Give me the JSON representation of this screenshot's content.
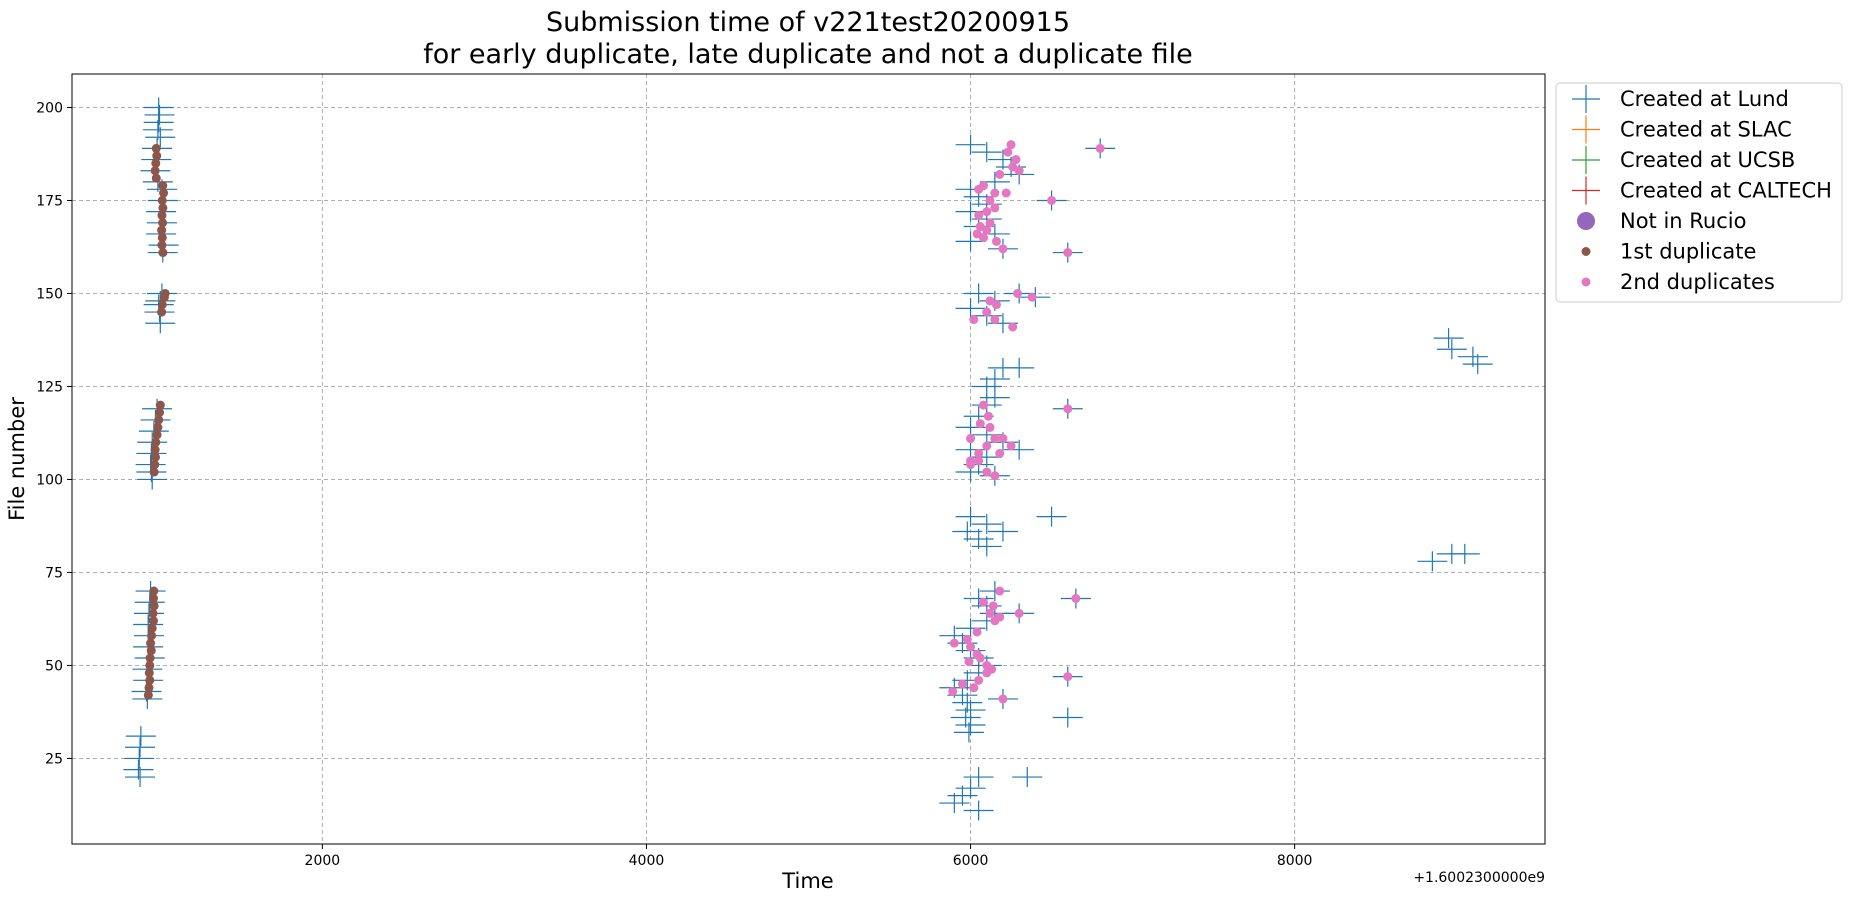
{
  "chart_data": {
    "type": "scatter",
    "title": [
      "Submission time of v221test20200915",
      "for early duplicate, late duplicate and not a duplicate file"
    ],
    "xlabel": "Time",
    "ylabel": "File number",
    "x_offset_text": "+1.6002300000e9",
    "xlim": [
      455,
      9545
    ],
    "ylim": [
      2,
      209
    ],
    "xticks": [
      2000,
      4000,
      6000,
      8000
    ],
    "xtick_labels": [
      "2000",
      "4000",
      "6000",
      "8000"
    ],
    "yticks": [
      25,
      50,
      75,
      100,
      125,
      150,
      175,
      200
    ],
    "ytick_labels": [
      "25",
      "50",
      "75",
      "100",
      "125",
      "150",
      "175",
      "200"
    ],
    "grid": true,
    "legend_position": "outside top-right",
    "series": [
      {
        "name": "Created at Lund",
        "marker": "+",
        "color": "#1f77b4",
        "points": [
          [
            990,
            196
          ],
          [
            990,
            200
          ],
          [
            995,
            198
          ],
          [
            985,
            194
          ],
          [
            1000,
            192
          ],
          [
            980,
            189
          ],
          [
            975,
            186
          ],
          [
            970,
            183
          ],
          [
            985,
            180
          ],
          [
            1010,
            178
          ],
          [
            1015,
            175
          ],
          [
            1005,
            172
          ],
          [
            1010,
            169
          ],
          [
            1005,
            166
          ],
          [
            1020,
            163
          ],
          [
            1015,
            161
          ],
          [
            1010,
            150
          ],
          [
            1000,
            148
          ],
          [
            995,
            145
          ],
          [
            1000,
            142
          ],
          [
            990,
            147
          ],
          [
            980,
            119
          ],
          [
            970,
            116
          ],
          [
            960,
            113
          ],
          [
            950,
            110
          ],
          [
            945,
            107
          ],
          [
            940,
            104
          ],
          [
            945,
            102
          ],
          [
            950,
            100
          ],
          [
            940,
            70
          ],
          [
            935,
            67
          ],
          [
            930,
            64
          ],
          [
            925,
            61
          ],
          [
            930,
            58
          ],
          [
            925,
            55
          ],
          [
            935,
            52
          ],
          [
            920,
            49
          ],
          [
            925,
            46
          ],
          [
            915,
            43
          ],
          [
            920,
            41
          ],
          [
            880,
            31
          ],
          [
            875,
            28
          ],
          [
            870,
            25
          ],
          [
            865,
            22
          ],
          [
            875,
            20
          ],
          [
            6000,
            190
          ],
          [
            6100,
            188
          ],
          [
            6200,
            186
          ],
          [
            6250,
            184
          ],
          [
            6300,
            182
          ],
          [
            6150,
            180
          ],
          [
            6000,
            178
          ],
          [
            6050,
            176
          ],
          [
            6100,
            174
          ],
          [
            6000,
            172
          ],
          [
            6100,
            170
          ],
          [
            6050,
            168
          ],
          [
            6150,
            166
          ],
          [
            6000,
            164
          ],
          [
            6200,
            162
          ],
          [
            6500,
            175
          ],
          [
            6800,
            189
          ],
          [
            6600,
            161
          ],
          [
            6050,
            150
          ],
          [
            6150,
            148
          ],
          [
            6000,
            146
          ],
          [
            6100,
            144
          ],
          [
            6200,
            142
          ],
          [
            6400,
            149
          ],
          [
            6300,
            150
          ],
          [
            6200,
            130
          ],
          [
            6300,
            130
          ],
          [
            6150,
            127
          ],
          [
            6100,
            125
          ],
          [
            6150,
            122
          ],
          [
            6100,
            120
          ],
          [
            6050,
            117
          ],
          [
            6000,
            114
          ],
          [
            6100,
            112
          ],
          [
            6200,
            110
          ],
          [
            6000,
            108
          ],
          [
            6100,
            106
          ],
          [
            6050,
            104
          ],
          [
            6000,
            102
          ],
          [
            6150,
            101
          ],
          [
            6300,
            108
          ],
          [
            6600,
            119
          ],
          [
            6000,
            90
          ],
          [
            6100,
            88
          ],
          [
            5980,
            86
          ],
          [
            6050,
            84
          ],
          [
            6100,
            82
          ],
          [
            6200,
            86
          ],
          [
            6500,
            90
          ],
          [
            8850,
            78
          ],
          [
            8970,
            80
          ],
          [
            9050,
            80
          ],
          [
            8950,
            138
          ],
          [
            8970,
            135
          ],
          [
            9100,
            133
          ],
          [
            9130,
            131
          ],
          [
            6150,
            70
          ],
          [
            6050,
            68
          ],
          [
            6100,
            66
          ],
          [
            6150,
            64
          ],
          [
            6100,
            62
          ],
          [
            6000,
            60
          ],
          [
            5900,
            58
          ],
          [
            5950,
            56
          ],
          [
            6000,
            54
          ],
          [
            6050,
            52
          ],
          [
            6100,
            50
          ],
          [
            6050,
            48
          ],
          [
            5980,
            46
          ],
          [
            5900,
            44
          ],
          [
            5950,
            42
          ],
          [
            5980,
            40
          ],
          [
            6000,
            38
          ],
          [
            5970,
            36
          ],
          [
            6000,
            34
          ],
          [
            5990,
            32
          ],
          [
            6650,
            68
          ],
          [
            6600,
            47
          ],
          [
            6600,
            36
          ],
          [
            6200,
            41
          ],
          [
            6300,
            64
          ],
          [
            6050,
            20
          ],
          [
            6000,
            17
          ],
          [
            5950,
            15
          ],
          [
            5900,
            13
          ],
          [
            6050,
            11
          ],
          [
            6350,
            20
          ]
        ]
      },
      {
        "name": "Created at SLAC",
        "marker": "+",
        "color": "#ff7f0e",
        "points": []
      },
      {
        "name": "Created at UCSB",
        "marker": "+",
        "color": "#2ca02c",
        "points": []
      },
      {
        "name": "Created at CALTECH",
        "marker": "+",
        "color": "#d62728",
        "points": []
      },
      {
        "name": "Not in Rucio",
        "marker": "o-large",
        "color": "#9467bd",
        "points": []
      },
      {
        "name": "1st duplicate",
        "marker": "o",
        "color": "#8c564b",
        "points": [
          [
            975,
            189
          ],
          [
            978,
            187
          ],
          [
            972,
            185
          ],
          [
            968,
            183
          ],
          [
            975,
            181
          ],
          [
            1015,
            179
          ],
          [
            1020,
            177
          ],
          [
            1012,
            175
          ],
          [
            1016,
            173
          ],
          [
            1010,
            171
          ],
          [
            1014,
            169
          ],
          [
            1008,
            167
          ],
          [
            1012,
            165
          ],
          [
            1010,
            163
          ],
          [
            1016,
            161
          ],
          [
            1030,
            150
          ],
          [
            1025,
            149
          ],
          [
            1012,
            147
          ],
          [
            1008,
            145
          ],
          [
            1000,
            120
          ],
          [
            995,
            118
          ],
          [
            990,
            116
          ],
          [
            985,
            114
          ],
          [
            980,
            112
          ],
          [
            972,
            110
          ],
          [
            968,
            108
          ],
          [
            970,
            106
          ],
          [
            965,
            104
          ],
          [
            962,
            102
          ],
          [
            960,
            70
          ],
          [
            958,
            68
          ],
          [
            962,
            66
          ],
          [
            955,
            64
          ],
          [
            958,
            62
          ],
          [
            950,
            60
          ],
          [
            946,
            58
          ],
          [
            940,
            56
          ],
          [
            944,
            54
          ],
          [
            937,
            52
          ],
          [
            935,
            50
          ],
          [
            932,
            48
          ],
          [
            935,
            46
          ],
          [
            930,
            44
          ],
          [
            926,
            42
          ]
        ]
      },
      {
        "name": "2nd duplicates",
        "marker": "o",
        "color": "#e377c2",
        "points": [
          [
            6250,
            190
          ],
          [
            6230,
            188
          ],
          [
            6280,
            186
          ],
          [
            6260,
            184
          ],
          [
            6300,
            183
          ],
          [
            6180,
            182
          ],
          [
            6080,
            179
          ],
          [
            6050,
            178
          ],
          [
            6150,
            177
          ],
          [
            6220,
            177
          ],
          [
            6120,
            175
          ],
          [
            6150,
            173
          ],
          [
            6100,
            172
          ],
          [
            6050,
            171
          ],
          [
            6120,
            169
          ],
          [
            6060,
            168
          ],
          [
            6100,
            167
          ],
          [
            6040,
            166
          ],
          [
            6080,
            165
          ],
          [
            6160,
            164
          ],
          [
            6200,
            162
          ],
          [
            6500,
            175
          ],
          [
            6800,
            189
          ],
          [
            6600,
            161
          ],
          [
            6290,
            150
          ],
          [
            6380,
            149
          ],
          [
            6120,
            148
          ],
          [
            6160,
            147
          ],
          [
            6020,
            143
          ],
          [
            6100,
            145
          ],
          [
            6150,
            143
          ],
          [
            6260,
            141
          ],
          [
            6080,
            120
          ],
          [
            6110,
            117
          ],
          [
            6060,
            115
          ],
          [
            6120,
            114
          ],
          [
            6000,
            111
          ],
          [
            6150,
            111
          ],
          [
            6200,
            111
          ],
          [
            6100,
            109
          ],
          [
            6250,
            109
          ],
          [
            6050,
            107
          ],
          [
            6180,
            107
          ],
          [
            6000,
            105
          ],
          [
            6050,
            105
          ],
          [
            6000,
            104
          ],
          [
            6100,
            102
          ],
          [
            6150,
            101
          ],
          [
            6600,
            119
          ],
          [
            6180,
            70
          ],
          [
            6080,
            67
          ],
          [
            6140,
            66
          ],
          [
            6120,
            64
          ],
          [
            6180,
            63
          ],
          [
            6150,
            62
          ],
          [
            6040,
            59
          ],
          [
            5980,
            57
          ],
          [
            5900,
            56
          ],
          [
            6000,
            55
          ],
          [
            6040,
            53
          ],
          [
            6060,
            52
          ],
          [
            5990,
            51
          ],
          [
            6100,
            50
          ],
          [
            6130,
            49
          ],
          [
            6100,
            48
          ],
          [
            6050,
            46
          ],
          [
            5950,
            45
          ],
          [
            6020,
            44
          ],
          [
            5890,
            43
          ],
          [
            6200,
            41
          ],
          [
            6650,
            68
          ],
          [
            6600,
            47
          ],
          [
            6300,
            64
          ]
        ]
      }
    ]
  }
}
